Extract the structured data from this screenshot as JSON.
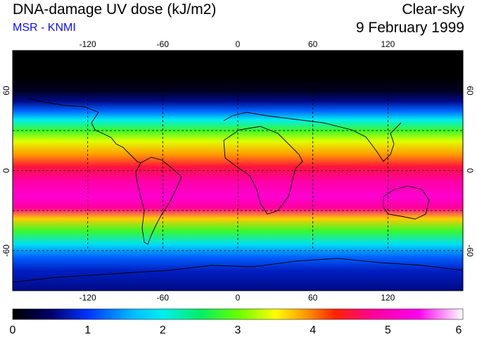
{
  "header": {
    "title": "DNA-damage UV dose (kJ/m2)",
    "source": "MSR - KNMI",
    "sky_condition": "Clear-sky",
    "date": "9 February 1999"
  },
  "map": {
    "projection": "equirectangular",
    "lon_range": [
      -180,
      180
    ],
    "lat_range": [
      -90,
      90
    ],
    "top_axis_labels": [
      "-120",
      "-60",
      "0",
      "60",
      "120"
    ],
    "bottom_axis_labels": [
      "-120",
      "-60",
      "0",
      "60",
      "120"
    ],
    "left_axis_labels": [
      "60",
      "0",
      "-60"
    ],
    "right_axis_labels": [
      "60",
      "0",
      "-60"
    ],
    "gridlines": "dashed",
    "grid_lons": [
      -120,
      -60,
      0,
      60,
      120
    ],
    "grid_lats": [
      60,
      30,
      0,
      -30,
      -60
    ],
    "field_profile": [
      {
        "lat": 90,
        "value": 0.0
      },
      {
        "lat": 70,
        "value": 0.0
      },
      {
        "lat": 60,
        "value": 0.15
      },
      {
        "lat": 52,
        "value": 0.6
      },
      {
        "lat": 45,
        "value": 1.2
      },
      {
        "lat": 38,
        "value": 2.0
      },
      {
        "lat": 30,
        "value": 2.8
      },
      {
        "lat": 22,
        "value": 3.4
      },
      {
        "lat": 12,
        "value": 3.9
      },
      {
        "lat": 3,
        "value": 4.5
      },
      {
        "lat": -8,
        "value": 4.9
      },
      {
        "lat": -20,
        "value": 5.2
      },
      {
        "lat": -28,
        "value": 4.8
      },
      {
        "lat": -36,
        "value": 3.7
      },
      {
        "lat": -45,
        "value": 2.8
      },
      {
        "lat": -55,
        "value": 1.9
      },
      {
        "lat": -65,
        "value": 1.2
      },
      {
        "lat": -75,
        "value": 0.8
      },
      {
        "lat": -90,
        "value": 0.6
      }
    ]
  },
  "colorbar": {
    "min": 0,
    "max": 6,
    "labels": [
      "0",
      "1",
      "2",
      "3",
      "4",
      "5",
      "6"
    ],
    "stops": [
      {
        "value": 0.0,
        "color": "#000000"
      },
      {
        "value": 0.5,
        "color": "#000066"
      },
      {
        "value": 1.0,
        "color": "#0033ff"
      },
      {
        "value": 1.6,
        "color": "#00bbff"
      },
      {
        "value": 2.0,
        "color": "#00eeee"
      },
      {
        "value": 2.5,
        "color": "#00ee66"
      },
      {
        "value": 3.0,
        "color": "#66ff00"
      },
      {
        "value": 3.5,
        "color": "#ffff00"
      },
      {
        "value": 3.9,
        "color": "#ff9900"
      },
      {
        "value": 4.3,
        "color": "#ff2200"
      },
      {
        "value": 4.8,
        "color": "#ff0099"
      },
      {
        "value": 5.4,
        "color": "#ff00ee"
      },
      {
        "value": 6.0,
        "color": "#ffffff"
      }
    ]
  }
}
